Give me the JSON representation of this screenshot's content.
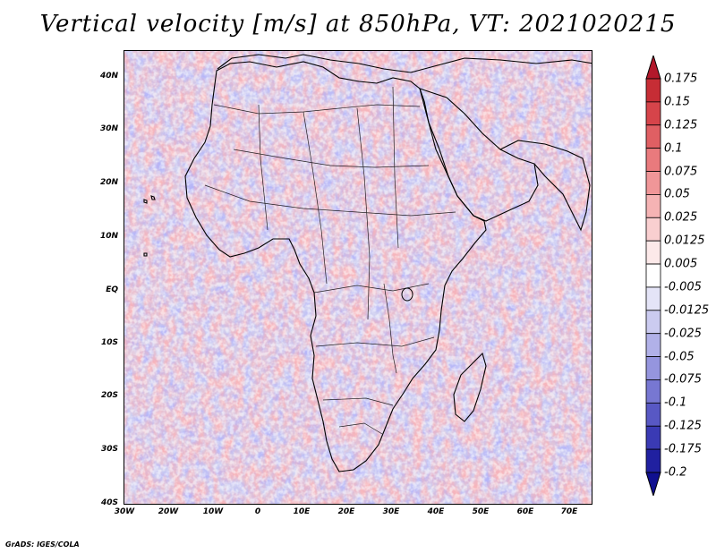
{
  "title": "Vertical velocity [m/s] at 850hPa, VT: 2021020215",
  "credit": "GrADS: IGES/COLA",
  "map": {
    "lat_labels": [
      "40N",
      "30N",
      "20N",
      "10N",
      "EQ",
      "10S",
      "20S",
      "30S",
      "40S"
    ],
    "lon_labels": [
      "30W",
      "20W",
      "10W",
      "0",
      "10E",
      "20E",
      "30E",
      "40E",
      "50E",
      "60E",
      "70E"
    ]
  },
  "colorbar": {
    "labels": [
      "0.175",
      "0.15",
      "0.125",
      "0.1",
      "0.075",
      "0.05",
      "0.025",
      "0.0125",
      "0.005",
      "-0.005",
      "-0.0125",
      "-0.025",
      "-0.05",
      "-0.075",
      "-0.1",
      "-0.125",
      "-0.175",
      "-0.2"
    ],
    "colors": [
      "#b2182b",
      "#c62d35",
      "#d6444a",
      "#e05f63",
      "#e97a7d",
      "#f09698",
      "#f5b3b4",
      "#f9cfd0",
      "#fce9e9",
      "#ffffff",
      "#e4e4f7",
      "#cbcbf0",
      "#b1b1e8",
      "#9595de",
      "#7777d2",
      "#5858c4",
      "#3a3ab4",
      "#2020a0",
      "#101090"
    ]
  }
}
